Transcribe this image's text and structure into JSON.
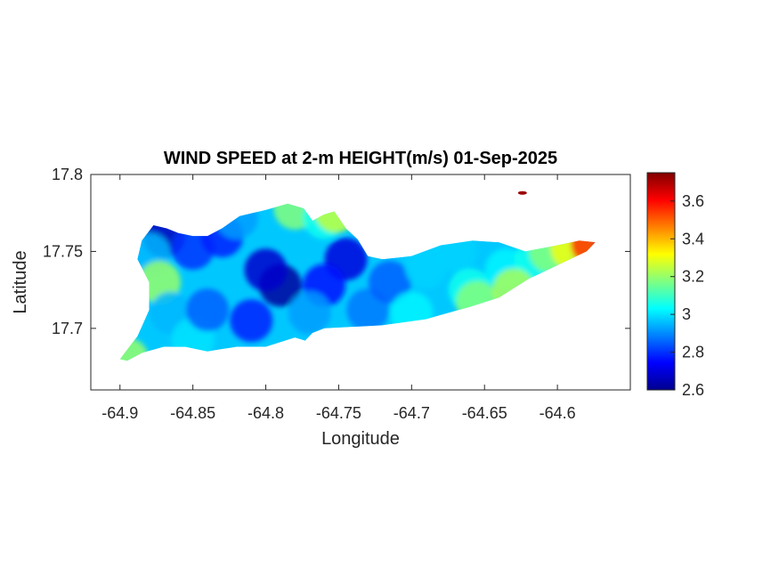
{
  "chart_data": {
    "type": "heatmap",
    "title": "WIND SPEED at 2-m HEIGHT(m/s) 01-Sep-2025",
    "xlabel": "Longitude",
    "ylabel": "Latitude",
    "xlim": [
      -64.92,
      -64.55
    ],
    "ylim": [
      17.66,
      17.8
    ],
    "x_ticks": [
      -64.9,
      -64.85,
      -64.8,
      -64.75,
      -64.7,
      -64.65,
      -64.6
    ],
    "x_tick_labels": [
      "-64.9",
      "-64.85",
      "-64.8",
      "-64.75",
      "-64.7",
      "-64.65",
      "-64.6"
    ],
    "y_ticks": [
      17.7,
      17.75,
      17.8
    ],
    "y_tick_labels": [
      "17.7",
      "17.75",
      "17.8"
    ],
    "colorbar": {
      "colormap": "jet",
      "range": [
        2.6,
        3.75
      ],
      "ticks": [
        2.6,
        2.8,
        3,
        3.2,
        3.4,
        3.6
      ],
      "tick_labels": [
        "2.6",
        "2.8",
        "3",
        "3.2",
        "3.4",
        "3.6"
      ],
      "colors": [
        "#00008f",
        "#0000ff",
        "#0080ff",
        "#00ffff",
        "#80ff80",
        "#ffff00",
        "#ff8000",
        "#ff0000",
        "#800000"
      ]
    },
    "land_outline": [
      [
        -64.9,
        17.68
      ],
      [
        -64.888,
        17.695
      ],
      [
        -64.88,
        17.712
      ],
      [
        -64.88,
        17.73
      ],
      [
        -64.888,
        17.745
      ],
      [
        -64.885,
        17.757
      ],
      [
        -64.877,
        17.767
      ],
      [
        -64.868,
        17.765
      ],
      [
        -64.86,
        17.762
      ],
      [
        -64.85,
        17.76
      ],
      [
        -64.84,
        17.76
      ],
      [
        -64.83,
        17.765
      ],
      [
        -64.818,
        17.773
      ],
      [
        -64.8,
        17.777
      ],
      [
        -64.785,
        17.781
      ],
      [
        -64.774,
        17.778
      ],
      [
        -64.768,
        17.77
      ],
      [
        -64.76,
        17.774
      ],
      [
        -64.753,
        17.776
      ],
      [
        -64.745,
        17.765
      ],
      [
        -64.737,
        17.758
      ],
      [
        -64.73,
        17.747
      ],
      [
        -64.72,
        17.745
      ],
      [
        -64.7,
        17.747
      ],
      [
        -64.68,
        17.754
      ],
      [
        -64.658,
        17.757
      ],
      [
        -64.64,
        17.756
      ],
      [
        -64.622,
        17.75
      ],
      [
        -64.6,
        17.754
      ],
      [
        -64.585,
        17.757
      ],
      [
        -64.574,
        17.756
      ],
      [
        -64.58,
        17.75
      ],
      [
        -64.6,
        17.741
      ],
      [
        -64.62,
        17.732
      ],
      [
        -64.64,
        17.72
      ],
      [
        -64.66,
        17.714
      ],
      [
        -64.69,
        17.706
      ],
      [
        -64.72,
        17.702
      ],
      [
        -64.74,
        17.701
      ],
      [
        -64.76,
        17.7
      ],
      [
        -64.768,
        17.697
      ],
      [
        -64.773,
        17.692
      ],
      [
        -64.78,
        17.694
      ],
      [
        -64.8,
        17.688
      ],
      [
        -64.82,
        17.688
      ],
      [
        -64.84,
        17.685
      ],
      [
        -64.855,
        17.688
      ],
      [
        -64.87,
        17.688
      ],
      [
        -64.885,
        17.684
      ],
      [
        -64.895,
        17.679
      ]
    ],
    "islets": [
      {
        "lon": -64.624,
        "lat": 17.788,
        "value": 3.72
      }
    ],
    "field_points": [
      {
        "lon": -64.79,
        "lat": 17.728,
        "value": 2.62
      },
      {
        "lon": -64.8,
        "lat": 17.738,
        "value": 2.68
      },
      {
        "lon": -64.745,
        "lat": 17.745,
        "value": 2.7
      },
      {
        "lon": -64.76,
        "lat": 17.728,
        "value": 2.76
      },
      {
        "lon": -64.87,
        "lat": 17.76,
        "value": 2.66
      },
      {
        "lon": -64.85,
        "lat": 17.752,
        "value": 2.8
      },
      {
        "lon": -64.83,
        "lat": 17.76,
        "value": 2.78
      },
      {
        "lon": -64.88,
        "lat": 17.748,
        "value": 2.95
      },
      {
        "lon": -64.873,
        "lat": 17.73,
        "value": 3.2
      },
      {
        "lon": -64.865,
        "lat": 17.71,
        "value": 2.95
      },
      {
        "lon": -64.895,
        "lat": 17.68,
        "value": 3.2
      },
      {
        "lon": -64.85,
        "lat": 17.693,
        "value": 3.0
      },
      {
        "lon": -64.84,
        "lat": 17.712,
        "value": 2.85
      },
      {
        "lon": -64.81,
        "lat": 17.705,
        "value": 2.78
      },
      {
        "lon": -64.78,
        "lat": 17.778,
        "value": 3.18
      },
      {
        "lon": -64.82,
        "lat": 17.772,
        "value": 2.92
      },
      {
        "lon": -64.76,
        "lat": 17.772,
        "value": 3.05
      },
      {
        "lon": -64.752,
        "lat": 17.776,
        "value": 3.25
      },
      {
        "lon": -64.77,
        "lat": 17.71,
        "value": 2.92
      },
      {
        "lon": -64.73,
        "lat": 17.712,
        "value": 2.88
      },
      {
        "lon": -64.715,
        "lat": 17.73,
        "value": 2.85
      },
      {
        "lon": -64.7,
        "lat": 17.71,
        "value": 3.02
      },
      {
        "lon": -64.69,
        "lat": 17.74,
        "value": 2.98
      },
      {
        "lon": -64.67,
        "lat": 17.75,
        "value": 2.98
      },
      {
        "lon": -64.66,
        "lat": 17.725,
        "value": 3.05
      },
      {
        "lon": -64.655,
        "lat": 17.717,
        "value": 3.18
      },
      {
        "lon": -64.635,
        "lat": 17.738,
        "value": 3.02
      },
      {
        "lon": -64.615,
        "lat": 17.744,
        "value": 3.05
      },
      {
        "lon": -64.63,
        "lat": 17.725,
        "value": 3.22
      },
      {
        "lon": -64.605,
        "lat": 17.75,
        "value": 3.18
      },
      {
        "lon": -64.59,
        "lat": 17.752,
        "value": 3.3
      },
      {
        "lon": -64.576,
        "lat": 17.755,
        "value": 3.55
      }
    ]
  }
}
